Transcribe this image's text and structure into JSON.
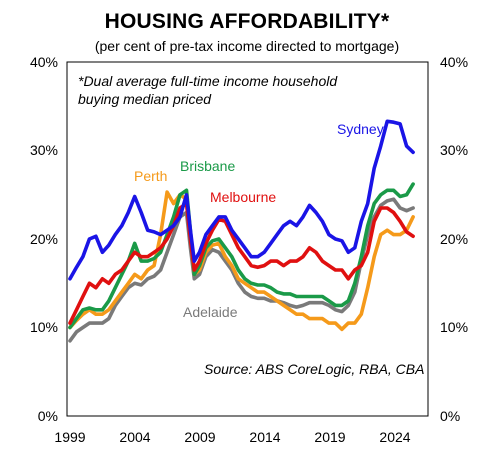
{
  "title": "HOUSING AFFORDABILITY*",
  "subtitle": "(per cent of pre-tax income directed to mortgage)",
  "colors": {
    "Sydney": "#1a14e6",
    "Melbourne": "#e01010",
    "Brisbane": "#1a9a48",
    "Perth": "#f59a1a",
    "Adelaide": "#7a7a7a"
  },
  "chart_data": {
    "type": "line",
    "title": "HOUSING AFFORDABILITY*",
    "subtitle": "(per cent of pre-tax income directed to mortgage)",
    "xlim": [
      1999,
      2026.5
    ],
    "ylim": [
      0,
      40
    ],
    "x_ticks": [
      "1999",
      "2004",
      "2009",
      "2014",
      "2019",
      "2024"
    ],
    "y_ticks_left": [
      "0%",
      "10%",
      "20%",
      "30%",
      "40%"
    ],
    "y_ticks_right": [
      "0%",
      "10%",
      "20%",
      "30%",
      "40%"
    ],
    "grid": false,
    "annotation": [
      "*Dual average full-time income household",
      "buying median priced"
    ],
    "source": "Source: ABS CoreLogic, RBA, CBA",
    "series": [
      {
        "name": "Sydney",
        "points": [
          [
            1999,
            15.5
          ],
          [
            1999.5,
            16.8
          ],
          [
            2000,
            18
          ],
          [
            2000.5,
            20
          ],
          [
            2001,
            20.3
          ],
          [
            2001.5,
            18.5
          ],
          [
            2002,
            19.3
          ],
          [
            2002.5,
            20.5
          ],
          [
            2003,
            21.5
          ],
          [
            2003.5,
            23
          ],
          [
            2004,
            24.8
          ],
          [
            2004.5,
            23
          ],
          [
            2005,
            21
          ],
          [
            2005.5,
            20.8
          ],
          [
            2006,
            20.5
          ],
          [
            2006.5,
            21
          ],
          [
            2007,
            21.5
          ],
          [
            2007.5,
            22.5
          ],
          [
            2008,
            25
          ],
          [
            2008.3,
            21
          ],
          [
            2008.6,
            17.5
          ],
          [
            2009,
            18.5
          ],
          [
            2009.5,
            20.5
          ],
          [
            2010,
            21.5
          ],
          [
            2010.5,
            22.5
          ],
          [
            2011,
            22.5
          ],
          [
            2011.5,
            21
          ],
          [
            2012,
            20
          ],
          [
            2012.5,
            19
          ],
          [
            2013,
            18
          ],
          [
            2013.5,
            18
          ],
          [
            2014,
            18.5
          ],
          [
            2014.5,
            19.5
          ],
          [
            2015,
            20.5
          ],
          [
            2015.5,
            21.5
          ],
          [
            2016,
            22
          ],
          [
            2016.5,
            21.5
          ],
          [
            2017,
            22.5
          ],
          [
            2017.5,
            23.8
          ],
          [
            2018,
            23
          ],
          [
            2018.5,
            22
          ],
          [
            2019,
            20.5
          ],
          [
            2019.5,
            20
          ],
          [
            2020,
            19.8
          ],
          [
            2020.5,
            18.5
          ],
          [
            2021,
            19
          ],
          [
            2021.5,
            22
          ],
          [
            2022,
            24
          ],
          [
            2022.5,
            28
          ],
          [
            2023,
            30.5
          ],
          [
            2023.5,
            33.3
          ],
          [
            2024,
            33.2
          ],
          [
            2024.5,
            33
          ],
          [
            2025,
            30.5
          ],
          [
            2025.5,
            29.8
          ]
        ]
      },
      {
        "name": "Melbourne",
        "points": [
          [
            1999,
            10.5
          ],
          [
            1999.5,
            12
          ],
          [
            2000,
            13.5
          ],
          [
            2000.5,
            15
          ],
          [
            2001,
            14.5
          ],
          [
            2001.5,
            15.5
          ],
          [
            2002,
            15
          ],
          [
            2002.5,
            16
          ],
          [
            2003,
            16.5
          ],
          [
            2003.5,
            17.5
          ],
          [
            2004,
            18.5
          ],
          [
            2004.5,
            18
          ],
          [
            2005,
            18
          ],
          [
            2005.5,
            18.5
          ],
          [
            2006,
            19
          ],
          [
            2006.5,
            20
          ],
          [
            2007,
            21.5
          ],
          [
            2007.5,
            23.5
          ],
          [
            2008,
            24
          ],
          [
            2008.3,
            20
          ],
          [
            2008.6,
            16.5
          ],
          [
            2009,
            17.5
          ],
          [
            2009.5,
            19.5
          ],
          [
            2010,
            21
          ],
          [
            2010.5,
            22.2
          ],
          [
            2011,
            22
          ],
          [
            2011.5,
            20.5
          ],
          [
            2012,
            19
          ],
          [
            2012.5,
            18
          ],
          [
            2013,
            17
          ],
          [
            2013.5,
            16.8
          ],
          [
            2014,
            17
          ],
          [
            2014.5,
            17.5
          ],
          [
            2015,
            17.5
          ],
          [
            2015.5,
            17
          ],
          [
            2016,
            17.5
          ],
          [
            2016.5,
            17.5
          ],
          [
            2017,
            18
          ],
          [
            2017.5,
            19
          ],
          [
            2018,
            18.5
          ],
          [
            2018.5,
            17.5
          ],
          [
            2019,
            17
          ],
          [
            2019.5,
            16.5
          ],
          [
            2020,
            16.5
          ],
          [
            2020.5,
            15.5
          ],
          [
            2021,
            16.5
          ],
          [
            2021.5,
            17
          ],
          [
            2022,
            18.5
          ],
          [
            2022.5,
            22
          ],
          [
            2023,
            23.5
          ],
          [
            2023.5,
            23.5
          ],
          [
            2024,
            23
          ],
          [
            2024.5,
            22
          ],
          [
            2025,
            20.8
          ],
          [
            2025.5,
            20.3
          ]
        ]
      },
      {
        "name": "Brisbane",
        "points": [
          [
            1999,
            10
          ],
          [
            1999.5,
            11
          ],
          [
            2000,
            12
          ],
          [
            2000.5,
            12.2
          ],
          [
            2001,
            12
          ],
          [
            2001.5,
            12
          ],
          [
            2002,
            13
          ],
          [
            2002.5,
            14.5
          ],
          [
            2003,
            16
          ],
          [
            2003.5,
            17.5
          ],
          [
            2004,
            19.5
          ],
          [
            2004.5,
            17.5
          ],
          [
            2005,
            17.5
          ],
          [
            2005.5,
            17.8
          ],
          [
            2006,
            18.5
          ],
          [
            2006.5,
            20.5
          ],
          [
            2007,
            22.5
          ],
          [
            2007.5,
            25
          ],
          [
            2008,
            25.5
          ],
          [
            2008.3,
            21
          ],
          [
            2008.6,
            16
          ],
          [
            2009,
            17
          ],
          [
            2009.5,
            19
          ],
          [
            2010,
            19.8
          ],
          [
            2010.5,
            20
          ],
          [
            2011,
            19
          ],
          [
            2011.5,
            18
          ],
          [
            2012,
            16.5
          ],
          [
            2012.5,
            15.5
          ],
          [
            2013,
            15
          ],
          [
            2013.5,
            14.8
          ],
          [
            2014,
            14.8
          ],
          [
            2014.5,
            14.5
          ],
          [
            2015,
            14
          ],
          [
            2015.5,
            13.8
          ],
          [
            2016,
            13.8
          ],
          [
            2016.5,
            13.5
          ],
          [
            2017,
            13.5
          ],
          [
            2017.5,
            13.5
          ],
          [
            2018,
            13.5
          ],
          [
            2018.5,
            13.5
          ],
          [
            2019,
            13
          ],
          [
            2019.5,
            12.5
          ],
          [
            2020,
            12.5
          ],
          [
            2020.5,
            13
          ],
          [
            2021,
            15
          ],
          [
            2021.5,
            18
          ],
          [
            2022,
            21.5
          ],
          [
            2022.5,
            24
          ],
          [
            2023,
            25
          ],
          [
            2023.5,
            25.5
          ],
          [
            2024,
            25.5
          ],
          [
            2024.5,
            24.8
          ],
          [
            2025,
            25
          ],
          [
            2025.5,
            26.2
          ]
        ]
      },
      {
        "name": "Perth",
        "points": [
          [
            1999,
            10
          ],
          [
            1999.5,
            10.8
          ],
          [
            2000,
            11.5
          ],
          [
            2000.5,
            12
          ],
          [
            2001,
            11.5
          ],
          [
            2001.5,
            11.5
          ],
          [
            2002,
            12
          ],
          [
            2002.5,
            13
          ],
          [
            2003,
            14
          ],
          [
            2003.5,
            15
          ],
          [
            2004,
            16
          ],
          [
            2004.5,
            15.5
          ],
          [
            2005,
            16.5
          ],
          [
            2005.5,
            17
          ],
          [
            2006,
            20.5
          ],
          [
            2006.5,
            25.3
          ],
          [
            2007,
            24
          ],
          [
            2007.5,
            25
          ],
          [
            2008,
            24.5
          ],
          [
            2008.3,
            20.5
          ],
          [
            2008.6,
            16
          ],
          [
            2009,
            16.5
          ],
          [
            2009.5,
            18.5
          ],
          [
            2010,
            19.3
          ],
          [
            2010.5,
            19.5
          ],
          [
            2011,
            18
          ],
          [
            2011.5,
            17
          ],
          [
            2012,
            15.5
          ],
          [
            2012.5,
            15
          ],
          [
            2013,
            14.5
          ],
          [
            2013.5,
            14
          ],
          [
            2014,
            14
          ],
          [
            2014.5,
            13.5
          ],
          [
            2015,
            13
          ],
          [
            2015.5,
            12.5
          ],
          [
            2016,
            12
          ],
          [
            2016.5,
            11.5
          ],
          [
            2017,
            11.5
          ],
          [
            2017.5,
            11
          ],
          [
            2018,
            11
          ],
          [
            2018.5,
            11
          ],
          [
            2019,
            10.5
          ],
          [
            2019.5,
            10.5
          ],
          [
            2020,
            9.8
          ],
          [
            2020.5,
            10.5
          ],
          [
            2021,
            10.5
          ],
          [
            2021.5,
            11.5
          ],
          [
            2022,
            14.5
          ],
          [
            2022.5,
            18
          ],
          [
            2023,
            20.5
          ],
          [
            2023.5,
            21
          ],
          [
            2024,
            20.5
          ],
          [
            2024.5,
            20.5
          ],
          [
            2025,
            21
          ],
          [
            2025.5,
            22.5
          ]
        ]
      },
      {
        "name": "Adelaide",
        "points": [
          [
            1999,
            8.5
          ],
          [
            1999.5,
            9.5
          ],
          [
            2000,
            10
          ],
          [
            2000.5,
            10.5
          ],
          [
            2001,
            10.5
          ],
          [
            2001.5,
            10.5
          ],
          [
            2002,
            11
          ],
          [
            2002.5,
            12.5
          ],
          [
            2003,
            13.5
          ],
          [
            2003.5,
            14.5
          ],
          [
            2004,
            15
          ],
          [
            2004.5,
            14.8
          ],
          [
            2005,
            15.5
          ],
          [
            2005.5,
            15.8
          ],
          [
            2006,
            16.5
          ],
          [
            2006.5,
            18.5
          ],
          [
            2007,
            20.5
          ],
          [
            2007.5,
            22.5
          ],
          [
            2008,
            23
          ],
          [
            2008.3,
            19
          ],
          [
            2008.6,
            15.5
          ],
          [
            2009,
            16
          ],
          [
            2009.5,
            18
          ],
          [
            2010,
            18.8
          ],
          [
            2010.5,
            18.5
          ],
          [
            2011,
            17.5
          ],
          [
            2011.5,
            16.5
          ],
          [
            2012,
            15
          ],
          [
            2012.5,
            14
          ],
          [
            2013,
            13.5
          ],
          [
            2013.5,
            13.3
          ],
          [
            2014,
            13.3
          ],
          [
            2014.5,
            13
          ],
          [
            2015,
            13
          ],
          [
            2015.5,
            12.8
          ],
          [
            2016,
            12.5
          ],
          [
            2016.5,
            12.3
          ],
          [
            2017,
            12.5
          ],
          [
            2017.5,
            12.8
          ],
          [
            2018,
            12.8
          ],
          [
            2018.5,
            12.8
          ],
          [
            2019,
            12.5
          ],
          [
            2019.5,
            12
          ],
          [
            2020,
            11.8
          ],
          [
            2020.5,
            12.5
          ],
          [
            2021,
            14
          ],
          [
            2021.5,
            17.5
          ],
          [
            2022,
            20.5
          ],
          [
            2022.5,
            22.5
          ],
          [
            2023,
            23.8
          ],
          [
            2023.5,
            24.3
          ],
          [
            2024,
            24.5
          ],
          [
            2024.5,
            23.5
          ],
          [
            2025,
            23.2
          ],
          [
            2025.5,
            23.5
          ]
        ]
      }
    ],
    "series_labels": [
      "Sydney",
      "Melbourne",
      "Brisbane",
      "Perth",
      "Adelaide"
    ]
  }
}
